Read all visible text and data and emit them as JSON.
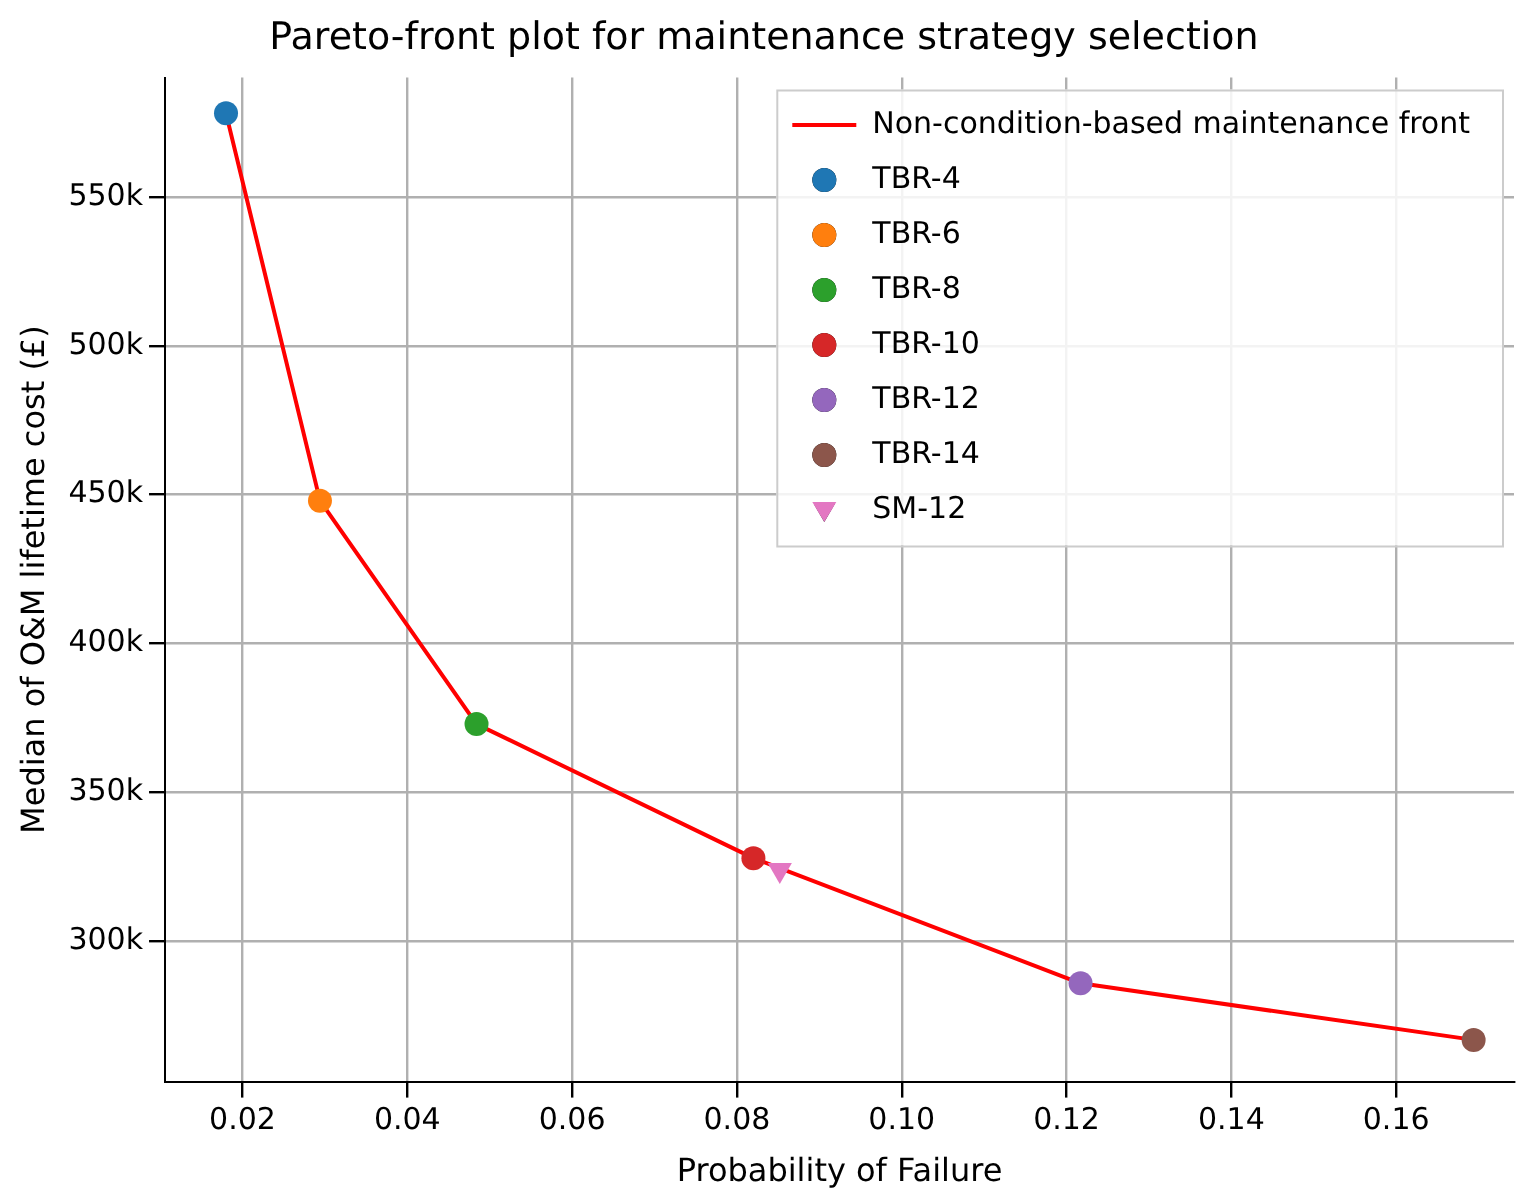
{
  "chart_data": {
    "type": "scatter",
    "title": "Pareto-front plot for maintenance strategy selection",
    "xlabel": "Probability of Failure",
    "ylabel": "Median of O&M lifetime cost (£)",
    "xlim": [
      0.0106,
      0.1743
    ],
    "xticks": [
      0.02,
      0.04,
      0.06,
      0.08,
      {
        "value": 0.1,
        "label": "0.10"
      },
      {
        "value": 0.12,
        "label": "0.12"
      },
      {
        "value": 0.14,
        "label": "0.14"
      },
      {
        "value": 0.16,
        "label": "0.16"
      }
    ],
    "ylim": [
      253000,
      590000
    ],
    "yticks": [
      {
        "value": 300000,
        "label": "300k"
      },
      {
        "value": 350000,
        "label": "350k"
      },
      {
        "value": 400000,
        "label": "400k"
      },
      {
        "value": 450000,
        "label": "450k"
      },
      {
        "value": 500000,
        "label": "500k"
      },
      {
        "value": 550000,
        "label": "550k"
      }
    ],
    "grid": true,
    "legend": "top right",
    "marker": "circle",
    "series": [
      {
        "name": "Non-condition-based maintenance front",
        "type": "line",
        "marker": "none",
        "color": "#ff0000",
        "x": [
          0.018,
          0.0294,
          0.0484,
          0.082,
          0.1217,
          0.1694
        ],
        "values": [
          578000,
          448000,
          373000,
          328000,
          286000,
          267000
        ]
      },
      {
        "name": "TBR-4",
        "color": "#1f77b4",
        "x": [
          0.018
        ],
        "values": [
          578000
        ]
      },
      {
        "name": "TBR-6",
        "color": "#ff7f0e",
        "x": [
          0.0294
        ],
        "values": [
          448000
        ]
      },
      {
        "name": "TBR-8",
        "color": "#2ca02c",
        "x": [
          0.0484
        ],
        "values": [
          373000
        ]
      },
      {
        "name": "TBR-10",
        "color": "#d62728",
        "x": [
          0.082
        ],
        "values": [
          328000
        ]
      },
      {
        "name": "TBR-12",
        "color": "#9467bd",
        "x": [
          0.1217
        ],
        "values": [
          286000
        ]
      },
      {
        "name": "TBR-14",
        "color": "#8c564b",
        "x": [
          0.1694
        ],
        "values": [
          267000
        ]
      },
      {
        "name": "SM-12",
        "color": "#e377c2",
        "x": [
          0.0852
        ],
        "values": [
          324000
        ],
        "marker": "triangle"
      }
    ]
  }
}
